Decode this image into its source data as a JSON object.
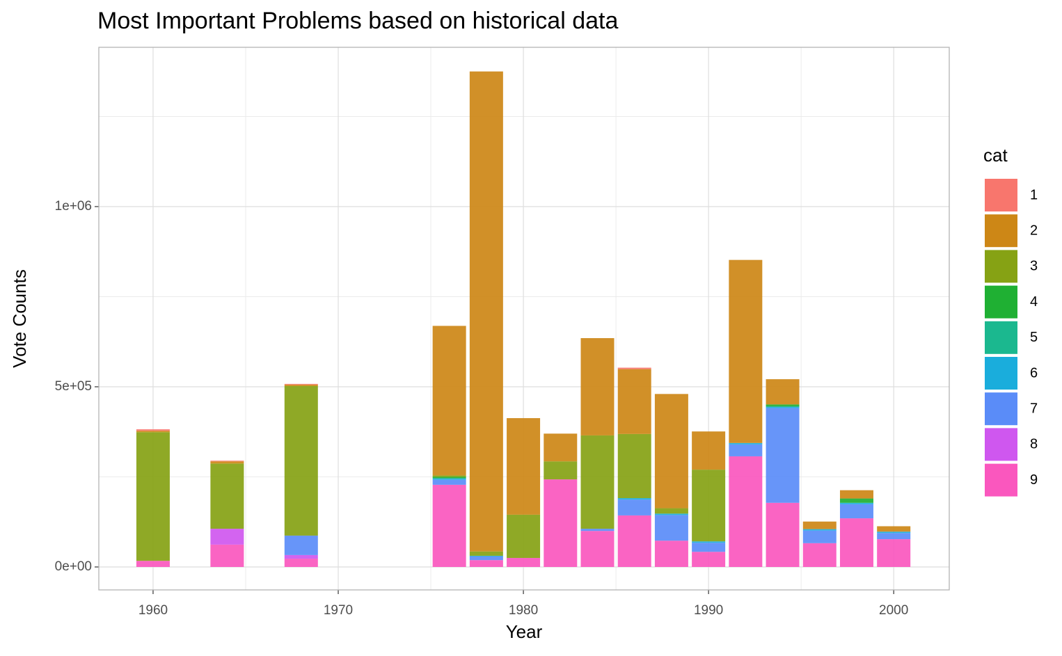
{
  "chart_data": {
    "type": "stacked_bar",
    "title": "Most Important Problems based on historical data",
    "x_label": "Year",
    "y_label": "Vote Counts",
    "legend_title": "cat",
    "x": [
      1960,
      1964,
      1968,
      1976,
      1978,
      1980,
      1982,
      1984,
      1986,
      1988,
      1990,
      1992,
      1994,
      1996,
      1998,
      2000
    ],
    "series": [
      {
        "name": "1",
        "color": "#F8766D",
        "values": [
          4000,
          2000,
          2000,
          0,
          0,
          0,
          0,
          0,
          4000,
          0,
          0,
          0,
          0,
          0,
          0,
          0
        ]
      },
      {
        "name": "2",
        "color": "#CD8716",
        "values": [
          4000,
          6000,
          4000,
          415000,
          1332000,
          268000,
          77000,
          270000,
          180000,
          317000,
          106000,
          508000,
          70000,
          21000,
          23000,
          15000
        ]
      },
      {
        "name": "3",
        "color": "#86A214",
        "values": [
          357000,
          181000,
          415000,
          4000,
          12000,
          120000,
          50000,
          259000,
          178000,
          15000,
          199000,
          0,
          0,
          0,
          0,
          0
        ]
      },
      {
        "name": "4",
        "color": "#1FB033",
        "values": [
          0,
          0,
          0,
          4000,
          0,
          0,
          0,
          0,
          0,
          0,
          0,
          0,
          6000,
          0,
          12000,
          0
        ]
      },
      {
        "name": "5",
        "color": "#1BB88F",
        "values": [
          0,
          0,
          0,
          0,
          0,
          0,
          0,
          0,
          0,
          0,
          0,
          0,
          0,
          0,
          0,
          0
        ]
      },
      {
        "name": "6",
        "color": "#1AADDC",
        "values": [
          0,
          0,
          0,
          4000,
          2000,
          0,
          0,
          0,
          4000,
          4000,
          4000,
          4000,
          4000,
          4000,
          4000,
          4000
        ]
      },
      {
        "name": "7",
        "color": "#5A8CF8",
        "values": [
          0,
          0,
          54000,
          14000,
          10000,
          0,
          0,
          6000,
          44000,
          71000,
          25000,
          33000,
          263000,
          35000,
          39000,
          17000
        ]
      },
      {
        "name": "8",
        "color": "#CF57EF",
        "values": [
          0,
          44000,
          10000,
          0,
          0,
          0,
          0,
          0,
          0,
          0,
          0,
          0,
          0,
          0,
          0,
          0
        ]
      },
      {
        "name": "9",
        "color": "#FA57BE",
        "values": [
          17000,
          62000,
          23000,
          228000,
          19000,
          25000,
          243000,
          100000,
          143000,
          73000,
          42000,
          307000,
          178000,
          66000,
          135000,
          77000
        ]
      }
    ],
    "xlim": [
      1957.07,
      2003.0
    ],
    "xticks": [
      1960,
      1970,
      1980,
      1990,
      2000
    ],
    "ylim": [
      -63700,
      1442000
    ],
    "yticks": [
      {
        "value": 0,
        "label": "0e+00"
      },
      {
        "value": 500000,
        "label": "5e+05"
      },
      {
        "value": 1000000,
        "label": "1e+06"
      }
    ],
    "grid": true,
    "legend_position": "right"
  }
}
